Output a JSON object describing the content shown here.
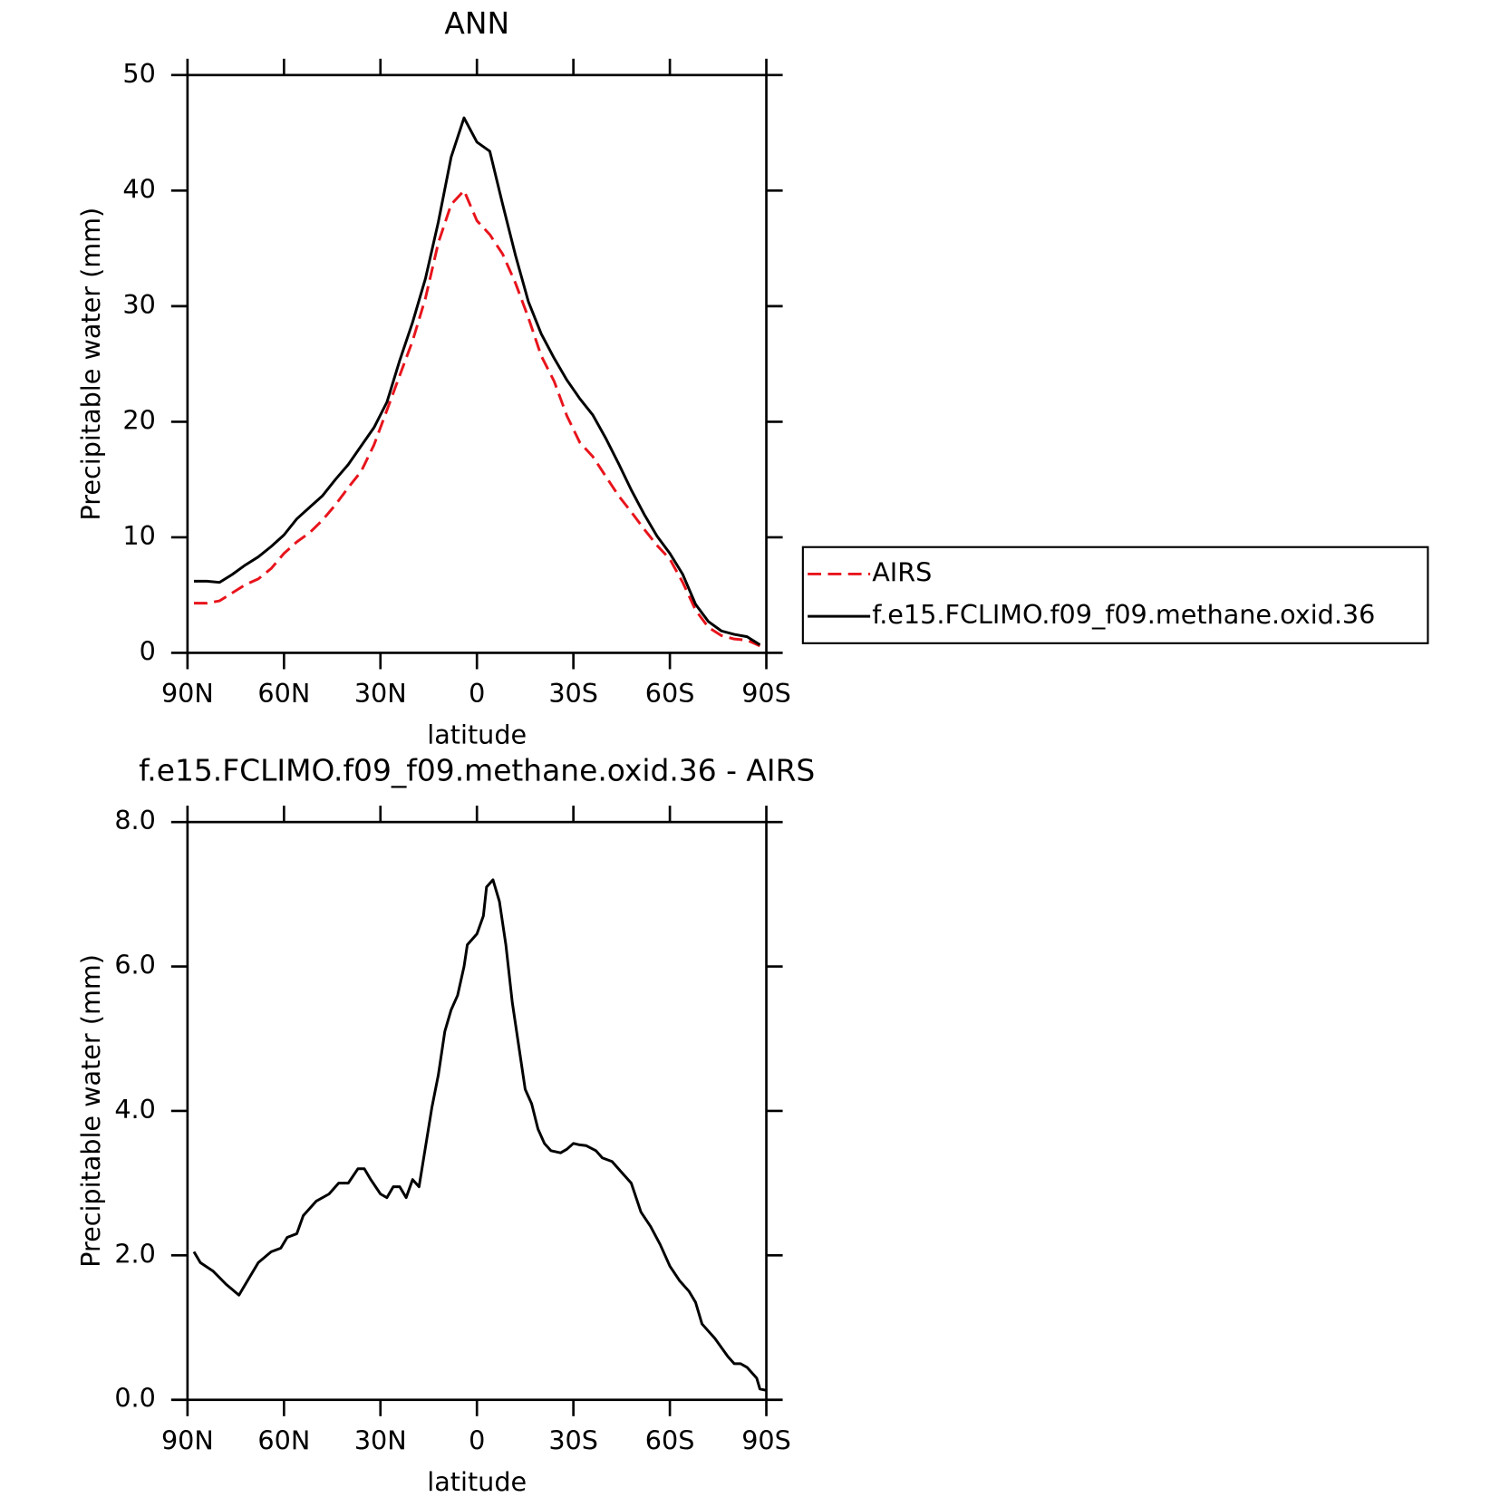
{
  "chart_data": [
    {
      "type": "line",
      "title": "ANN",
      "xlabel": "latitude",
      "ylabel": "Precipitable water (mm)",
      "x": [
        88,
        84,
        80,
        76,
        72,
        68,
        64,
        60,
        56,
        52,
        48,
        44,
        40,
        36,
        32,
        28,
        24,
        20,
        16,
        12,
        8,
        4,
        0,
        -4,
        -8,
        -12,
        -16,
        -20,
        -24,
        -28,
        -32,
        -36,
        -40,
        -44,
        -48,
        -52,
        -56,
        -60,
        -64,
        -68,
        -72,
        -76,
        -80,
        -84,
        -88
      ],
      "series": [
        {
          "name": "AIRS",
          "color": "#e8141c",
          "dashed": true,
          "values": [
            4.3,
            4.3,
            4.5,
            5.2,
            5.9,
            6.4,
            7.3,
            8.6,
            9.6,
            10.4,
            11.5,
            12.8,
            14.3,
            15.7,
            18.0,
            21.0,
            24.0,
            27.0,
            30.7,
            35.5,
            38.8,
            40.0,
            37.4,
            36.2,
            34.5,
            32.0,
            29.0,
            25.7,
            23.5,
            20.5,
            18.2,
            17.0,
            15.3,
            13.6,
            12.2,
            10.7,
            9.3,
            8.1,
            6.1,
            3.7,
            2.2,
            1.5,
            1.2,
            1.1,
            0.6
          ]
        },
        {
          "name": "f.e15.FCLIMO.f09_f09.methane.oxid.36",
          "color": "#000000",
          "dashed": false,
          "values": [
            6.2,
            6.2,
            6.1,
            6.8,
            7.6,
            8.3,
            9.2,
            10.2,
            11.6,
            12.6,
            13.6,
            15.0,
            16.3,
            17.9,
            19.5,
            21.7,
            25.3,
            28.6,
            32.4,
            37.3,
            42.9,
            46.3,
            44.2,
            43.4,
            38.8,
            34.4,
            30.4,
            27.6,
            25.5,
            23.6,
            22.0,
            20.6,
            18.6,
            16.4,
            14.1,
            12.0,
            10.1,
            8.6,
            6.8,
            4.2,
            2.7,
            1.9,
            1.6,
            1.4,
            0.7
          ]
        }
      ],
      "xlim": [
        90,
        -90
      ],
      "xticks": [
        {
          "value": 90,
          "label": "90N"
        },
        {
          "value": 60,
          "label": "60N"
        },
        {
          "value": 30,
          "label": "30N"
        },
        0,
        {
          "value": -30,
          "label": "30S"
        },
        {
          "value": -60,
          "label": "60S"
        },
        {
          "value": -90,
          "label": "90S"
        }
      ],
      "ylim": [
        0,
        50
      ],
      "yticks": [
        0,
        10,
        20,
        30,
        40,
        50
      ],
      "legend": "right"
    },
    {
      "type": "line",
      "title": "f.e15.FCLIMO.f09_f09.methane.oxid.36 - AIRS",
      "xlabel": "latitude",
      "ylabel": "Precipitable water (mm)",
      "x": [
        88,
        86,
        82,
        78,
        74,
        72,
        68,
        64,
        61,
        59,
        56,
        54,
        50,
        46,
        43,
        40,
        37,
        35,
        33,
        30,
        28,
        26,
        24,
        22,
        20,
        18,
        14,
        12,
        10,
        8,
        6,
        4,
        3,
        0,
        -2,
        -3,
        -5,
        -7,
        -9,
        -11,
        -13,
        -15,
        -17,
        -19,
        -21,
        -23,
        -26,
        -28,
        -30,
        -32,
        -34,
        -37,
        -39,
        -42,
        -45,
        -48,
        -51,
        -54,
        -57,
        -60,
        -63,
        -66,
        -68,
        -70,
        -74,
        -78,
        -80,
        -82,
        -84,
        -87,
        -88,
        -90
      ],
      "values": [
        2.05,
        1.9,
        1.78,
        1.6,
        1.45,
        1.6,
        1.9,
        2.05,
        2.1,
        2.25,
        2.3,
        2.55,
        2.75,
        2.85,
        3.0,
        3.0,
        3.2,
        3.2,
        3.05,
        2.85,
        2.8,
        2.95,
        2.95,
        2.8,
        3.05,
        2.95,
        4.05,
        4.5,
        5.1,
        5.4,
        5.6,
        6.0,
        6.3,
        6.45,
        6.7,
        7.1,
        7.2,
        6.9,
        6.3,
        5.5,
        4.9,
        4.3,
        4.1,
        3.75,
        3.55,
        3.45,
        3.42,
        3.47,
        3.55,
        3.53,
        3.52,
        3.45,
        3.35,
        3.3,
        3.15,
        3.0,
        2.6,
        2.4,
        2.15,
        1.85,
        1.65,
        1.5,
        1.35,
        1.05,
        0.85,
        0.6,
        0.5,
        0.5,
        0.45,
        0.3,
        0.15,
        0.13
      ],
      "color": "#000000",
      "xlim": [
        90,
        -90
      ],
      "xticks": [
        {
          "value": 90,
          "label": "90N"
        },
        {
          "value": 60,
          "label": "60N"
        },
        {
          "value": 30,
          "label": "30N"
        },
        0,
        {
          "value": -30,
          "label": "30S"
        },
        {
          "value": -60,
          "label": "60S"
        },
        {
          "value": -90,
          "label": "90S"
        }
      ],
      "ylim": [
        0,
        8
      ],
      "yticks": [
        {
          "value": 0,
          "label": "0.0"
        },
        {
          "value": 2,
          "label": "2.0"
        },
        {
          "value": 4,
          "label": "4.0"
        },
        {
          "value": 6,
          "label": "6.0"
        },
        {
          "value": 8,
          "label": "8.0"
        }
      ]
    }
  ]
}
